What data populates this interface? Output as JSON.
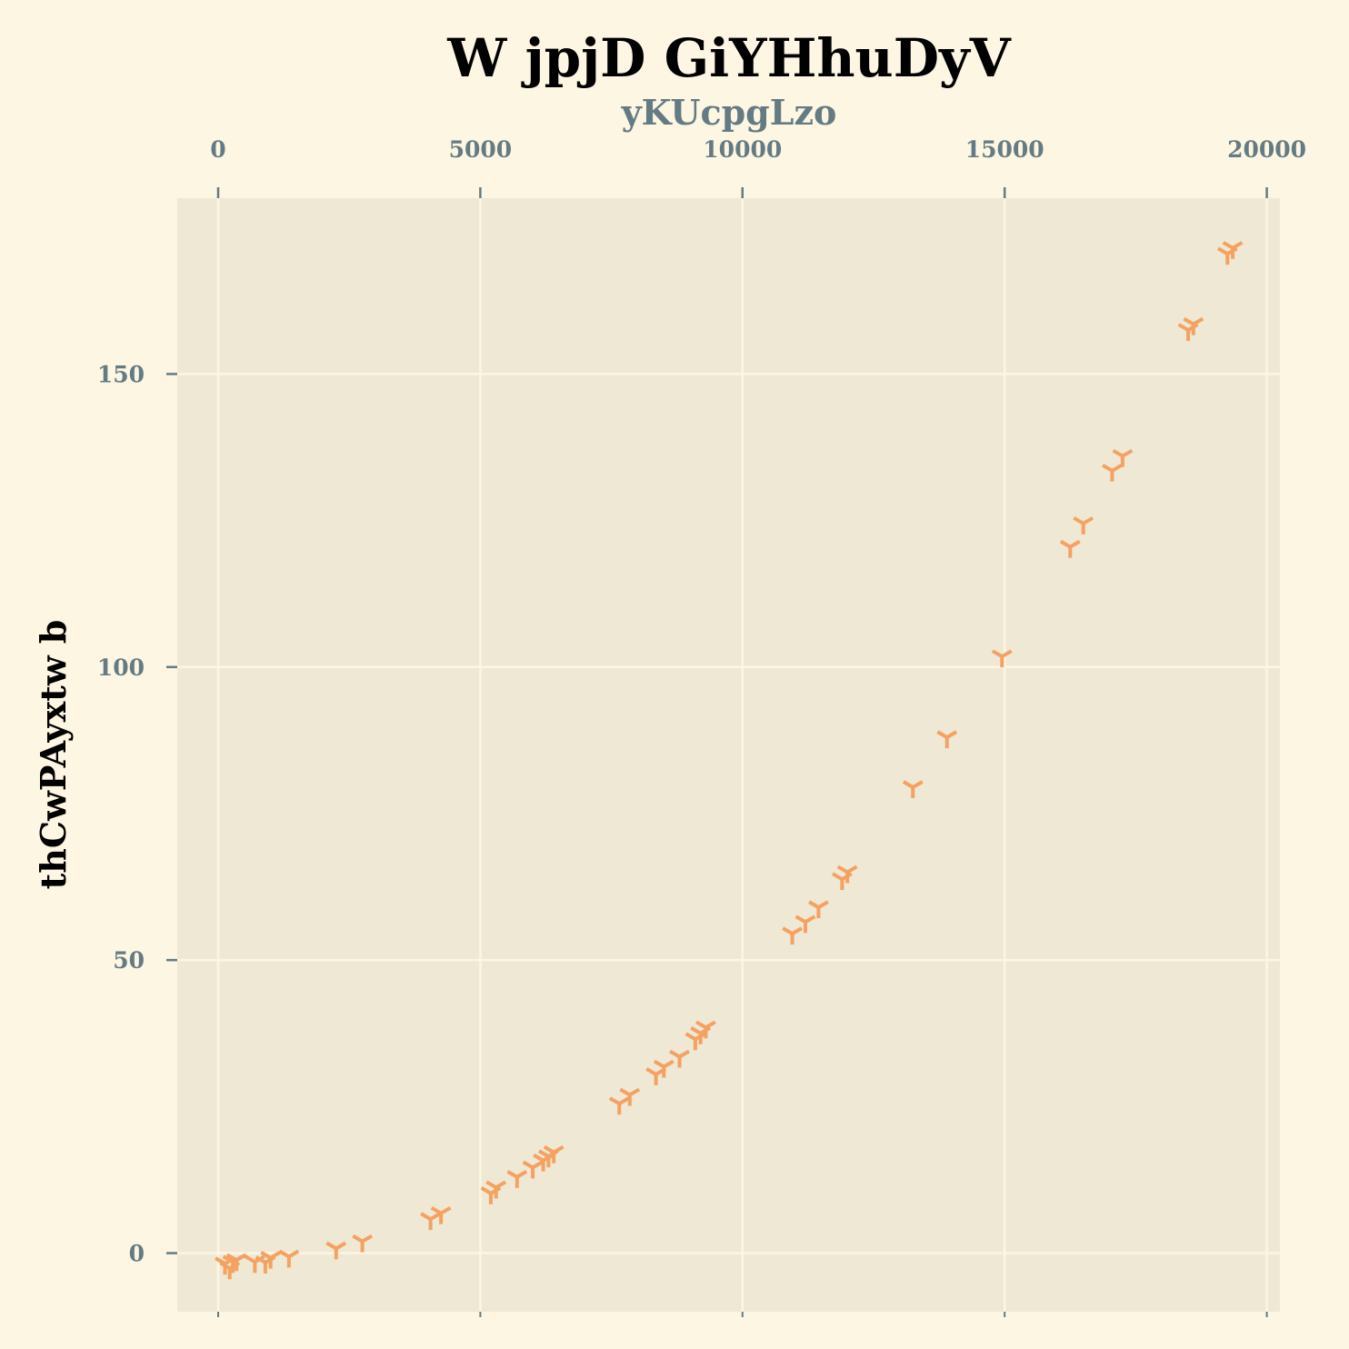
{
  "chart_data": {
    "type": "scatter",
    "title": "W jpjD  GiYHhuDyV",
    "xlabel": "yKUcpgLzo",
    "ylabel": "thCwPAyxtw  b",
    "x_axis_position": "top",
    "xlim": [
      -780,
      20250
    ],
    "ylim": [
      -10,
      180
    ],
    "xticks": [
      0,
      5000,
      10000,
      15000,
      20000
    ],
    "yticks": [
      0,
      50,
      100,
      150
    ],
    "grid": true,
    "marker": "tri-down",
    "colors": {
      "background": "#fdf6e3",
      "plot_background": "#eee8d5",
      "grid": "#fdf6e3",
      "marker": "#f4a261",
      "tick_text": "#657b83",
      "axis_label": "#657b83",
      "title": "#000000"
    },
    "points": [
      {
        "x": 130,
        "y": -1.8
      },
      {
        "x": 220,
        "y": -2.6
      },
      {
        "x": 280,
        "y": -1.5
      },
      {
        "x": 350,
        "y": -1.2
      },
      {
        "x": 700,
        "y": -1.5
      },
      {
        "x": 900,
        "y": -1.6
      },
      {
        "x": 1000,
        "y": -0.8
      },
      {
        "x": 1350,
        "y": -0.6
      },
      {
        "x": 2250,
        "y": 0.8
      },
      {
        "x": 2750,
        "y": 2.0
      },
      {
        "x": 4050,
        "y": 5.8
      },
      {
        "x": 4250,
        "y": 6.8
      },
      {
        "x": 5200,
        "y": 10.2
      },
      {
        "x": 5300,
        "y": 11.2
      },
      {
        "x": 5700,
        "y": 13.0
      },
      {
        "x": 6000,
        "y": 14.6
      },
      {
        "x": 6200,
        "y": 15.8
      },
      {
        "x": 6300,
        "y": 16.5
      },
      {
        "x": 6400,
        "y": 17.2
      },
      {
        "x": 7650,
        "y": 25.5
      },
      {
        "x": 7850,
        "y": 27.0
      },
      {
        "x": 8350,
        "y": 30.5
      },
      {
        "x": 8500,
        "y": 31.8
      },
      {
        "x": 8800,
        "y": 33.5
      },
      {
        "x": 9100,
        "y": 36.5
      },
      {
        "x": 9200,
        "y": 37.5
      },
      {
        "x": 9300,
        "y": 38.5
      },
      {
        "x": 10950,
        "y": 54.5
      },
      {
        "x": 11200,
        "y": 56.5
      },
      {
        "x": 11450,
        "y": 59.0
      },
      {
        "x": 11900,
        "y": 63.8
      },
      {
        "x": 12000,
        "y": 65.0
      },
      {
        "x": 13250,
        "y": 79.5
      },
      {
        "x": 13900,
        "y": 88.0
      },
      {
        "x": 14950,
        "y": 101.8
      },
      {
        "x": 16250,
        "y": 120.5
      },
      {
        "x": 16500,
        "y": 124.5
      },
      {
        "x": 17050,
        "y": 133.5
      },
      {
        "x": 17250,
        "y": 136.0
      },
      {
        "x": 18500,
        "y": 157.5
      },
      {
        "x": 18600,
        "y": 158.5
      },
      {
        "x": 19250,
        "y": 170.5
      },
      {
        "x": 19350,
        "y": 171.5
      }
    ]
  }
}
